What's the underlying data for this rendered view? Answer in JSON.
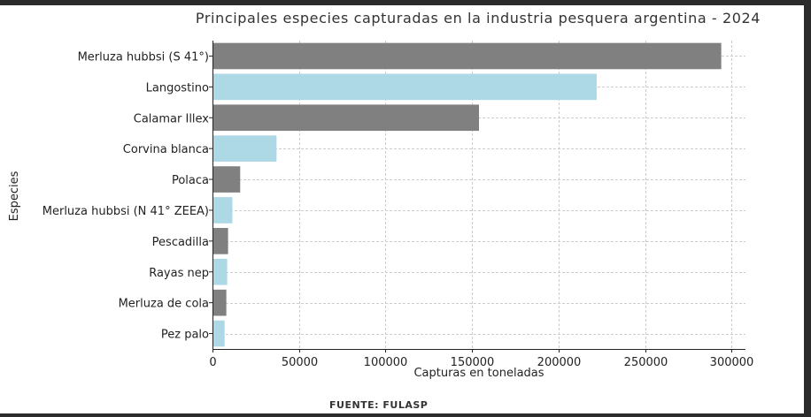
{
  "chart_data": {
    "type": "bar",
    "orientation": "horizontal",
    "title": "Principales especies capturadas en la industria pesquera argentina - 2024",
    "xlabel": "Capturas en toneladas",
    "ylabel": "Especies",
    "categories": [
      "Merluza hubbsi (S 41°)",
      "Langostino",
      "Calamar Illex",
      "Corvina blanca",
      "Polaca",
      "Merluza hubbsi (N 41° ZEEA)",
      "Pescadilla",
      "Rayas nep",
      "Merluza de cola",
      "Pez palo"
    ],
    "values": [
      294000,
      222000,
      154000,
      37000,
      16000,
      11500,
      9000,
      8500,
      8000,
      7000
    ],
    "xlim": [
      0,
      308000
    ],
    "xticks": [
      0,
      50000,
      100000,
      150000,
      200000,
      250000,
      300000
    ],
    "xtick_labels": [
      "0",
      "50000",
      "100000",
      "150000",
      "200000",
      "250000",
      "300000"
    ],
    "grid": true,
    "bar_colors": [
      "#808080",
      "#add8e6"
    ]
  },
  "source_note": "FUENTE: FULASP"
}
